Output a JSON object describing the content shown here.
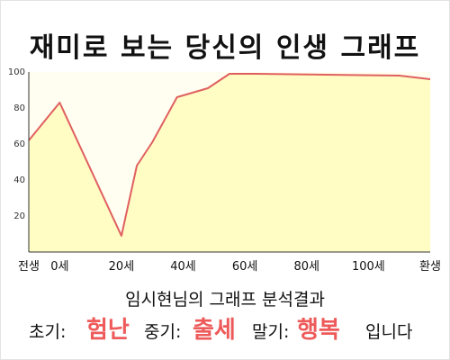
{
  "title": "재미로 보는 당신의 인생 그래프",
  "subtitle": "임시현님의 그래프 분석결과",
  "result": {
    "early_label": "초기:",
    "early_value": "험난",
    "mid_label": "중기:",
    "mid_value": "출세",
    "late_label": "말기:",
    "late_value": "행복",
    "suffix": "입니다"
  },
  "colors": {
    "line": "#e06060",
    "fill": "#fffcc4",
    "plot_bg": "#fffef0",
    "highlight": "#ee5a5a"
  },
  "chart_data": {
    "type": "area",
    "title": "재미로 보는 당신의 인생 그래프",
    "xlabel": "",
    "ylabel": "",
    "ylim": [
      0,
      100
    ],
    "grid": false,
    "yticks": [
      20,
      40,
      60,
      80,
      100
    ],
    "xticks": [
      {
        "x": -10,
        "label": "전생"
      },
      {
        "x": 0,
        "label": "0세"
      },
      {
        "x": 20,
        "label": "20세"
      },
      {
        "x": 40,
        "label": "40세"
      },
      {
        "x": 60,
        "label": "60세"
      },
      {
        "x": 80,
        "label": "80세"
      },
      {
        "x": 100,
        "label": "100세"
      },
      {
        "x": 120,
        "label": "환생"
      }
    ],
    "x": [
      -10,
      0,
      20,
      25,
      30,
      38,
      48,
      55,
      64,
      110,
      120
    ],
    "values": [
      62,
      83,
      9,
      48,
      61,
      86,
      91,
      99,
      99,
      98,
      96
    ]
  }
}
